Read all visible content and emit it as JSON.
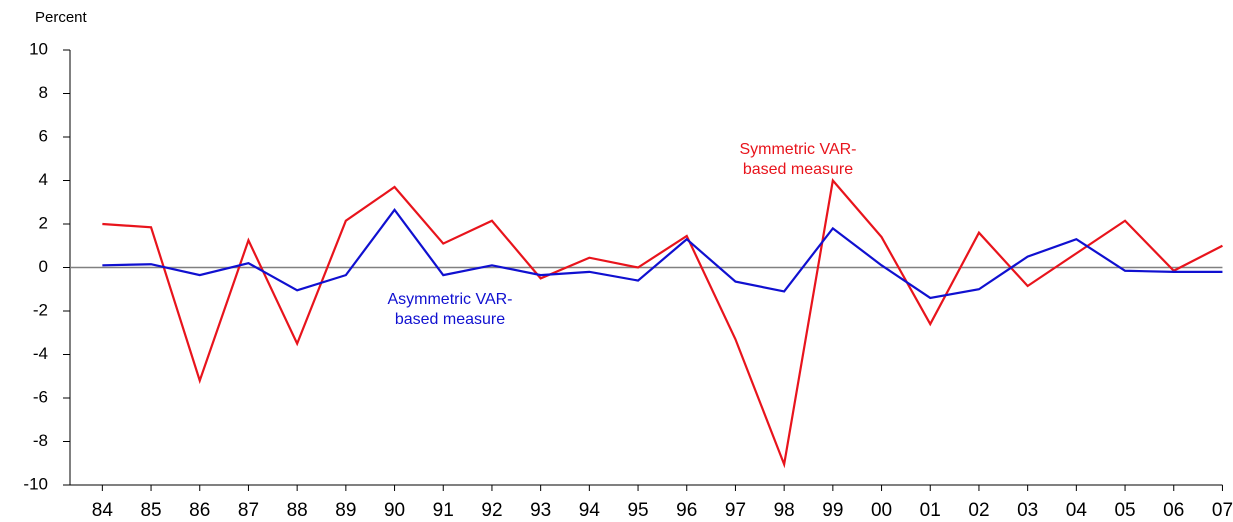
{
  "chart_data": {
    "type": "line",
    "y_label": "Percent",
    "categories": [
      "84",
      "85",
      "86",
      "87",
      "88",
      "89",
      "90",
      "91",
      "92",
      "93",
      "94",
      "95",
      "96",
      "97",
      "98",
      "99",
      "00",
      "01",
      "02",
      "03",
      "04",
      "05",
      "06",
      "07"
    ],
    "series": [
      {
        "name": "Symmetric VAR-based measure",
        "color": "#e8141c",
        "values": [
          2.0,
          1.85,
          -5.2,
          1.25,
          -3.5,
          2.15,
          3.7,
          1.1,
          2.15,
          -0.5,
          0.45,
          0.0,
          1.45,
          -3.3,
          -9.05,
          4.0,
          1.4,
          -2.6,
          1.6,
          -0.85,
          0.65,
          2.15,
          -0.15,
          1.0
        ]
      },
      {
        "name": "Asymmetric VAR-based measure",
        "color": "#1010d0",
        "values": [
          0.1,
          0.15,
          -0.35,
          0.2,
          -1.05,
          -0.35,
          2.65,
          -0.35,
          0.1,
          -0.35,
          -0.2,
          -0.6,
          1.3,
          -0.65,
          -1.1,
          1.8,
          0.1,
          -1.4,
          -1.0,
          0.5,
          1.3,
          -0.15,
          -0.2,
          -0.2
        ]
      }
    ],
    "annotations": [
      {
        "lines": [
          "Symmetric VAR-",
          "based measure"
        ],
        "color": "#e8141c"
      },
      {
        "lines": [
          "Asymmetric VAR-",
          "based measure"
        ],
        "color": "#1010d0"
      }
    ],
    "ylim": [
      -10,
      10
    ],
    "yticks": [
      -10,
      -8,
      -6,
      -4,
      -2,
      0,
      2,
      4,
      6,
      8,
      10
    ],
    "zero_line": true
  }
}
